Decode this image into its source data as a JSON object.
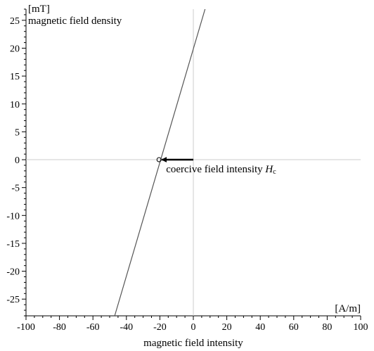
{
  "chart_data": {
    "type": "line",
    "xlabel": "magnetic field intensity",
    "ylabel": "magnetic field density",
    "x_unit": "[A/m]",
    "y_unit": "[mT]",
    "xlim": [
      -100,
      100
    ],
    "ylim": [
      -28,
      27
    ],
    "x_ticks": [
      -100,
      -80,
      -60,
      -40,
      -20,
      0,
      20,
      40,
      60,
      80,
      100
    ],
    "y_ticks": [
      -25,
      -20,
      -15,
      -10,
      -5,
      0,
      5,
      10,
      15,
      20,
      25
    ],
    "grid": false,
    "series": [
      {
        "x": [
          -47,
          7
        ],
        "y": [
          -28,
          27
        ]
      }
    ],
    "annotation": {
      "text": "coercive field intensity ",
      "symbol": "H",
      "subscript": "c",
      "point": [
        -20.5,
        0
      ],
      "arrow_from": [
        0,
        0
      ]
    }
  }
}
